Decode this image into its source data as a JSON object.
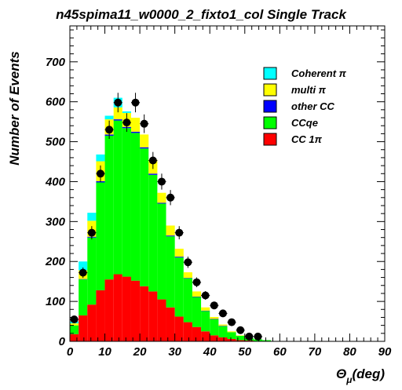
{
  "chart_data": {
    "type": "bar",
    "stacked": true,
    "title": "n45spima11_w0000_2_fixto1_col Single Track",
    "xlabel": "Θμ(deg)",
    "xlabel_main": "Θ",
    "xlabel_sub": "μ",
    "xlabel_rest": "(deg)",
    "ylabel": "Number of Events",
    "xlim": [
      0,
      90
    ],
    "ylim": [
      0,
      790
    ],
    "xticks": [
      "0",
      "10",
      "20",
      "30",
      "40",
      "50",
      "60",
      "70",
      "80",
      "90"
    ],
    "yticks": [
      "0",
      "100",
      "200",
      "300",
      "400",
      "500",
      "600",
      "700"
    ],
    "bin_width": 2.5,
    "bin_centers": [
      1.25,
      3.75,
      6.25,
      8.75,
      11.25,
      13.75,
      16.25,
      18.75,
      21.25,
      23.75,
      26.25,
      28.75,
      31.25,
      33.75,
      36.25,
      38.75,
      41.25,
      43.75,
      46.25,
      48.75,
      51.25,
      53.75,
      56.25,
      58.75
    ],
    "series": [
      {
        "name": "CC 1π",
        "color": "#ff0000",
        "values": [
          18,
          65,
          92,
          128,
          155,
          168,
          162,
          152,
          138,
          125,
          105,
          85,
          62,
          48,
          36,
          25,
          15,
          10,
          6,
          3,
          2,
          1,
          1,
          0
        ]
      },
      {
        "name": "CCqe",
        "color": "#00ff00",
        "values": [
          22,
          90,
          168,
          270,
          360,
          385,
          372,
          370,
          345,
          292,
          240,
          178,
          148,
          110,
          75,
          51,
          40,
          28,
          17,
          11,
          6,
          4,
          2,
          1
        ]
      },
      {
        "name": "other CC",
        "color": "#0000ff",
        "values": [
          0,
          1,
          2,
          3,
          3,
          3,
          3,
          3,
          3,
          3,
          2,
          2,
          2,
          1,
          1,
          1,
          1,
          1,
          0,
          0,
          0,
          0,
          0,
          0
        ]
      },
      {
        "name": "multi π",
        "color": "#ffff00",
        "values": [
          5,
          22,
          40,
          50,
          38,
          30,
          35,
          35,
          32,
          35,
          25,
          25,
          20,
          14,
          13,
          8,
          5,
          3,
          2,
          1,
          0,
          0,
          0,
          0
        ]
      },
      {
        "name": "Coherent π",
        "color": "#00ffff",
        "values": [
          5,
          22,
          20,
          17,
          9,
          24,
          4,
          0,
          0,
          0,
          0,
          0,
          0,
          0,
          0,
          0,
          0,
          0,
          0,
          0,
          0,
          0,
          0,
          0
        ]
      }
    ],
    "legend_order": [
      "Coherent π",
      "multi π",
      "other CC",
      "CCqe",
      "CC 1π"
    ],
    "legend_placement": "top-right",
    "data_points": {
      "x": [
        1.25,
        3.75,
        6.25,
        8.75,
        11.25,
        13.75,
        16.25,
        18.75,
        21.25,
        23.75,
        26.25,
        28.75,
        31.25,
        33.75,
        36.25,
        38.75,
        41.25,
        43.75,
        46.25,
        48.75,
        51.25,
        53.75
      ],
      "y": [
        55,
        172,
        272,
        420,
        530,
        598,
        548,
        598,
        545,
        453,
        400,
        360,
        272,
        198,
        148,
        115,
        90,
        70,
        48,
        28,
        12,
        12
      ]
    }
  }
}
